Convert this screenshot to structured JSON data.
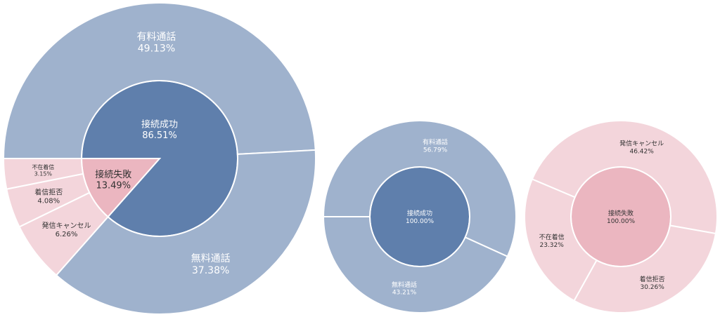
{
  "colors": {
    "success_inner": "#5F7FAC",
    "success_outer": "#9FB2CD",
    "failure_inner": "#EBB6C0",
    "failure_outer": "#F3D5DB",
    "label_light": "#FFFFFF",
    "label_dark": "#333333"
  },
  "chart_data": [
    {
      "type": "sunburst",
      "inner": [
        {
          "name": "接続成功",
          "percent": "86.51%",
          "value": 86.51
        },
        {
          "name": "接続失敗",
          "percent": "13.49%",
          "value": 13.49
        }
      ],
      "outer": [
        {
          "name": "有料通話",
          "percent": "49.13%",
          "value": 49.13,
          "parent": "接続成功"
        },
        {
          "name": "無料通話",
          "percent": "37.38%",
          "value": 37.38,
          "parent": "接続成功"
        },
        {
          "name": "発信キャンセル",
          "percent": "6.26%",
          "value": 6.26,
          "parent": "接続失敗"
        },
        {
          "name": "着信拒否",
          "percent": "4.08%",
          "value": 4.08,
          "parent": "接続失敗"
        },
        {
          "name": "不在着信",
          "percent": "3.15%",
          "value": 3.15,
          "parent": "接続失敗"
        }
      ]
    },
    {
      "type": "sunburst",
      "inner": [
        {
          "name": "接続成功",
          "percent": "100.00%",
          "value": 100.0
        }
      ],
      "outer": [
        {
          "name": "有料通話",
          "percent": "56.79%",
          "value": 56.79,
          "parent": "接続成功"
        },
        {
          "name": "無料通話",
          "percent": "43.21%",
          "value": 43.21,
          "parent": "接続成功"
        }
      ]
    },
    {
      "type": "sunburst",
      "inner": [
        {
          "name": "接続失敗",
          "percent": "100.00%",
          "value": 100.0
        }
      ],
      "outer": [
        {
          "name": "発信キャンセル",
          "percent": "46.42%",
          "value": 46.42,
          "parent": "接続失敗"
        },
        {
          "name": "着信拒否",
          "percent": "30.26%",
          "value": 30.26,
          "parent": "接続失敗"
        },
        {
          "name": "不在着信",
          "percent": "23.32%",
          "value": 23.32,
          "parent": "接続失敗"
        }
      ]
    }
  ]
}
